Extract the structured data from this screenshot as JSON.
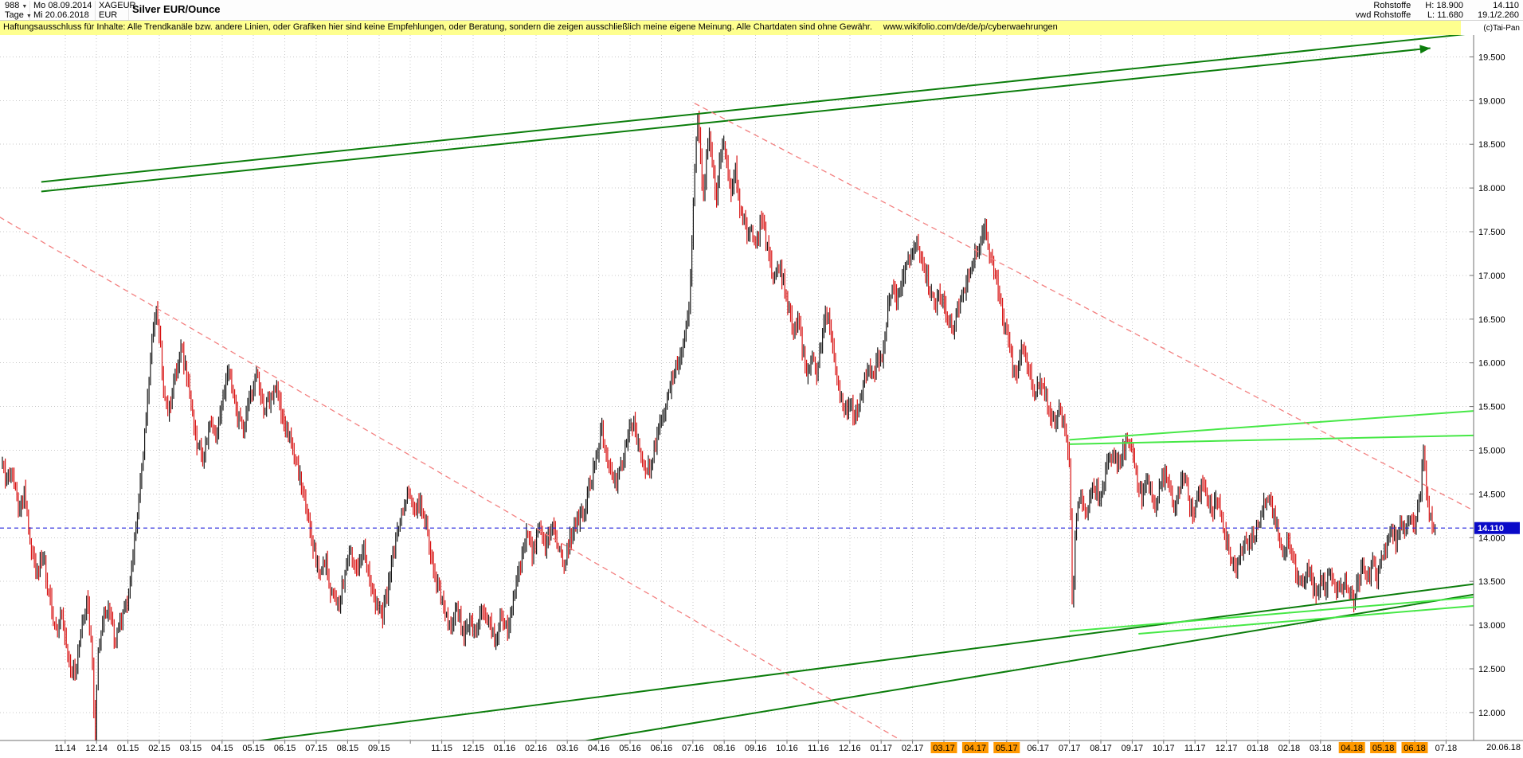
{
  "header": {
    "bars_count": "988",
    "dropdown_caret": "▼",
    "start_date": "Mo 08.09.2014",
    "symbol": "XAGEUR",
    "timeframe": "Tage",
    "end_date": "Mi 20.06.2018",
    "currency": "EUR",
    "title": "Silver EUR/Ounce",
    "category": "Rohstoffe",
    "feed": "vwd Rohstoffe",
    "high_label": "H: 18.900",
    "low_label": "L: 11.680",
    "last_price": "14.110",
    "secondary_value": "19.1/2.260"
  },
  "disclaimer": {
    "text": "Haftungsausschluss für Inhalte: Alle Trendkanäle bzw. andere Linien, oder Grafiken hier sind keine Empfehlungen, oder Beratung, sondern die zeigen ausschließlich meine eigene Meinung. Alle Chartdaten sind ohne Gewähr.",
    "link": "www.wikifolio.com/de/de/p/cyberwaehrungen"
  },
  "watermark": "(c)Tai-Pan",
  "corner_date": "20.06.18",
  "colors": {
    "bar_up": "#181818",
    "bar_down": "#d81414",
    "grid": "#c8c8c8",
    "dark_green": "#0b7d0b",
    "bright_green": "#46e846",
    "red_dashed": "#f38080",
    "blue": "#2424dc",
    "blue_tag_bg": "#0a0ac8",
    "orange": "#ff9900",
    "axis": "#707070"
  },
  "chart_data": {
    "type": "bar",
    "title": "Silver EUR/Ounce",
    "symbol": "XAGEUR",
    "xlabel": "",
    "ylabel": "",
    "start_date": "08.09.2014",
    "end_date": "20.06.2018",
    "bar_count": 988,
    "high": 18.9,
    "low": 11.68,
    "last": 14.11,
    "ylim": [
      11.68,
      19.75
    ],
    "x_range": [
      0,
      45.65
    ],
    "grid": "dotted",
    "legend": false,
    "y_ticks": [
      19.5,
      19.0,
      18.5,
      18.0,
      17.5,
      17.0,
      16.5,
      16.0,
      15.5,
      15.0,
      14.5,
      14.0,
      13.5,
      13.0,
      12.5,
      12.0
    ],
    "x_tick_labels": [
      {
        "m": 2,
        "t": "11.14"
      },
      {
        "m": 3,
        "t": "12.14"
      },
      {
        "m": 4,
        "t": "01.15"
      },
      {
        "m": 5,
        "t": "02.15"
      },
      {
        "m": 6,
        "t": "03.15"
      },
      {
        "m": 7,
        "t": "04.15"
      },
      {
        "m": 8,
        "t": "05.15"
      },
      {
        "m": 9,
        "t": "06.15"
      },
      {
        "m": 10,
        "t": "07.15"
      },
      {
        "m": 11,
        "t": "08.15"
      },
      {
        "m": 12,
        "t": "09.15"
      },
      {
        "m": 14,
        "t": "11.15"
      },
      {
        "m": 15,
        "t": "12.15"
      },
      {
        "m": 16,
        "t": "01.16"
      },
      {
        "m": 17,
        "t": "02.16"
      },
      {
        "m": 18,
        "t": "03.16"
      },
      {
        "m": 19,
        "t": "04.16"
      },
      {
        "m": 20,
        "t": "05.16"
      },
      {
        "m": 21,
        "t": "06.16"
      },
      {
        "m": 22,
        "t": "07.16"
      },
      {
        "m": 23,
        "t": "08.16"
      },
      {
        "m": 24,
        "t": "09.16"
      },
      {
        "m": 25,
        "t": "10.16"
      },
      {
        "m": 26,
        "t": "11.16"
      },
      {
        "m": 27,
        "t": "12.16"
      },
      {
        "m": 28,
        "t": "01.17"
      },
      {
        "m": 29,
        "t": "02.17"
      },
      {
        "m": 30,
        "t": "03.17",
        "hl": true
      },
      {
        "m": 31,
        "t": "04.17",
        "hl": true
      },
      {
        "m": 32,
        "t": "05.17",
        "hl": true
      },
      {
        "m": 33,
        "t": "06.17"
      },
      {
        "m": 34,
        "t": "07.17"
      },
      {
        "m": 35,
        "t": "08.17"
      },
      {
        "m": 36,
        "t": "09.17"
      },
      {
        "m": 37,
        "t": "10.17"
      },
      {
        "m": 38,
        "t": "11.17"
      },
      {
        "m": 39,
        "t": "12.17"
      },
      {
        "m": 40,
        "t": "01.18"
      },
      {
        "m": 41,
        "t": "02.18"
      },
      {
        "m": 42,
        "t": "03.18"
      },
      {
        "m": 43,
        "t": "04.18",
        "hl": true
      },
      {
        "m": 44,
        "t": "05.18",
        "hl": true
      },
      {
        "m": 45,
        "t": "06.18",
        "hl": true
      },
      {
        "m": 46,
        "t": "07.18"
      }
    ],
    "current_price_line": {
      "price": 14.11,
      "label": "14.110"
    },
    "trendlines": [
      {
        "id": "upper-trend-main",
        "from": [
          1.24,
          18.07
        ],
        "to": [
          46.9,
          19.77
        ],
        "style": "dark_green",
        "width": 2
      },
      {
        "id": "upper-trend-arrow",
        "from": [
          1.24,
          17.96
        ],
        "to": [
          45.5,
          19.6
        ],
        "style": "dark_green",
        "width": 2,
        "arrow": true
      },
      {
        "id": "lower-support-long",
        "from": [
          5.0,
          11.53
        ],
        "to": [
          46.9,
          13.47
        ],
        "style": "dark_green",
        "width": 2
      },
      {
        "id": "lower-support-steep",
        "from": [
          17.3,
          11.6
        ],
        "to": [
          46.9,
          13.35
        ],
        "style": "dark_green",
        "width": 2
      },
      {
        "id": "resistance-bright-upper",
        "from": [
          34.0,
          15.12
        ],
        "to": [
          46.9,
          15.45
        ],
        "style": "bright_green",
        "width": 2
      },
      {
        "id": "resistance-bright-lower",
        "from": [
          34.0,
          15.07
        ],
        "to": [
          46.9,
          15.17
        ],
        "style": "bright_green",
        "width": 2
      },
      {
        "id": "support-bright-upper",
        "from": [
          34.0,
          12.93
        ],
        "to": [
          46.9,
          13.32
        ],
        "style": "bright_green",
        "width": 2
      },
      {
        "id": "support-bright-lower",
        "from": [
          36.2,
          12.9
        ],
        "to": [
          46.9,
          13.22
        ],
        "style": "bright_green",
        "width": 2
      },
      {
        "id": "downtrend-dashed-2015",
        "from": [
          -0.1,
          17.67
        ],
        "to": [
          29.6,
          11.48
        ],
        "style": "red_dashed",
        "width": 1.3,
        "dash": true
      },
      {
        "id": "downtrend-dashed-2016",
        "from": [
          22.05,
          18.97
        ],
        "to": [
          47.2,
          14.25
        ],
        "style": "red_dashed",
        "width": 1.3,
        "dash": true
      }
    ],
    "price_path": [
      [
        0.0,
        14.9
      ],
      [
        0.15,
        14.62
      ],
      [
        0.3,
        14.8
      ],
      [
        0.5,
        14.35
      ],
      [
        0.7,
        14.5
      ],
      [
        0.9,
        13.95
      ],
      [
        1.1,
        13.6
      ],
      [
        1.3,
        13.82
      ],
      [
        1.5,
        13.3
      ],
      [
        1.7,
        12.92
      ],
      [
        1.9,
        13.15
      ],
      [
        2.1,
        12.6
      ],
      [
        2.3,
        12.42
      ],
      [
        2.5,
        12.88
      ],
      [
        2.7,
        13.3
      ],
      [
        2.85,
        12.65
      ],
      [
        2.95,
        11.68
      ],
      [
        3.05,
        12.7
      ],
      [
        3.2,
        13.05
      ],
      [
        3.4,
        13.25
      ],
      [
        3.6,
        12.8
      ],
      [
        3.8,
        13.05
      ],
      [
        4.0,
        13.35
      ],
      [
        4.2,
        13.95
      ],
      [
        4.4,
        14.6
      ],
      [
        4.6,
        15.45
      ],
      [
        4.75,
        16.25
      ],
      [
        4.87,
        16.6
      ],
      [
        5.0,
        16.35
      ],
      [
        5.15,
        15.65
      ],
      [
        5.3,
        15.4
      ],
      [
        5.5,
        15.85
      ],
      [
        5.7,
        16.15
      ],
      [
        5.85,
        15.9
      ],
      [
        6.0,
        15.55
      ],
      [
        6.2,
        15.1
      ],
      [
        6.4,
        14.9
      ],
      [
        6.6,
        15.3
      ],
      [
        6.8,
        15.15
      ],
      [
        7.0,
        15.5
      ],
      [
        7.2,
        15.95
      ],
      [
        7.35,
        15.7
      ],
      [
        7.5,
        15.4
      ],
      [
        7.7,
        15.25
      ],
      [
        7.9,
        15.6
      ],
      [
        8.1,
        15.9
      ],
      [
        8.3,
        15.5
      ],
      [
        8.5,
        15.55
      ],
      [
        8.7,
        15.75
      ],
      [
        8.9,
        15.4
      ],
      [
        9.1,
        15.25
      ],
      [
        9.3,
        14.95
      ],
      [
        9.5,
        14.65
      ],
      [
        9.7,
        14.25
      ],
      [
        9.9,
        13.9
      ],
      [
        10.1,
        13.6
      ],
      [
        10.3,
        13.7
      ],
      [
        10.5,
        13.35
      ],
      [
        10.7,
        13.2
      ],
      [
        10.9,
        13.55
      ],
      [
        11.1,
        13.85
      ],
      [
        11.3,
        13.6
      ],
      [
        11.5,
        13.9
      ],
      [
        11.7,
        13.5
      ],
      [
        11.9,
        13.25
      ],
      [
        12.1,
        13.1
      ],
      [
        12.3,
        13.45
      ],
      [
        12.5,
        13.9
      ],
      [
        12.7,
        14.25
      ],
      [
        12.9,
        14.5
      ],
      [
        13.1,
        14.3
      ],
      [
        13.3,
        14.45
      ],
      [
        13.5,
        14.15
      ],
      [
        13.7,
        13.7
      ],
      [
        13.9,
        13.4
      ],
      [
        14.1,
        13.15
      ],
      [
        14.3,
        12.98
      ],
      [
        14.5,
        13.2
      ],
      [
        14.7,
        12.85
      ],
      [
        14.9,
        13.05
      ],
      [
        15.1,
        12.92
      ],
      [
        15.3,
        13.18
      ],
      [
        15.5,
        13.05
      ],
      [
        15.7,
        12.85
      ],
      [
        15.9,
        13.1
      ],
      [
        16.1,
        12.95
      ],
      [
        16.3,
        13.3
      ],
      [
        16.5,
        13.7
      ],
      [
        16.7,
        14.05
      ],
      [
        16.9,
        13.8
      ],
      [
        17.1,
        14.1
      ],
      [
        17.3,
        13.9
      ],
      [
        17.5,
        14.15
      ],
      [
        17.7,
        13.92
      ],
      [
        17.9,
        13.72
      ],
      [
        18.1,
        13.98
      ],
      [
        18.3,
        14.18
      ],
      [
        18.5,
        14.22
      ],
      [
        18.7,
        14.55
      ],
      [
        18.9,
        14.9
      ],
      [
        19.1,
        15.25
      ],
      [
        19.3,
        14.88
      ],
      [
        19.5,
        14.58
      ],
      [
        19.7,
        14.82
      ],
      [
        19.9,
        15.1
      ],
      [
        20.1,
        15.35
      ],
      [
        20.3,
        15.02
      ],
      [
        20.5,
        14.68
      ],
      [
        20.7,
        14.92
      ],
      [
        20.9,
        15.18
      ],
      [
        21.1,
        15.45
      ],
      [
        21.3,
        15.72
      ],
      [
        21.5,
        15.98
      ],
      [
        21.7,
        16.22
      ],
      [
        21.85,
        16.5
      ],
      [
        21.95,
        17.2
      ],
      [
        22.05,
        18.1
      ],
      [
        22.15,
        18.88
      ],
      [
        22.25,
        18.35
      ],
      [
        22.35,
        17.85
      ],
      [
        22.45,
        18.45
      ],
      [
        22.55,
        18.6
      ],
      [
        22.65,
        18.2
      ],
      [
        22.75,
        17.78
      ],
      [
        22.85,
        18.28
      ],
      [
        22.95,
        18.5
      ],
      [
        23.05,
        18.42
      ],
      [
        23.15,
        18.1
      ],
      [
        23.25,
        17.92
      ],
      [
        23.35,
        18.2
      ],
      [
        23.45,
        17.95
      ],
      [
        23.55,
        17.62
      ],
      [
        23.65,
        17.78
      ],
      [
        23.75,
        17.42
      ],
      [
        23.85,
        17.58
      ],
      [
        24.0,
        17.32
      ],
      [
        24.15,
        17.62
      ],
      [
        24.3,
        17.48
      ],
      [
        24.45,
        17.18
      ],
      [
        24.6,
        16.92
      ],
      [
        24.75,
        17.12
      ],
      [
        24.9,
        16.88
      ],
      [
        25.05,
        16.6
      ],
      [
        25.2,
        16.32
      ],
      [
        25.35,
        16.52
      ],
      [
        25.5,
        16.1
      ],
      [
        25.65,
        15.88
      ],
      [
        25.8,
        16.05
      ],
      [
        25.95,
        15.92
      ],
      [
        26.1,
        16.3
      ],
      [
        26.25,
        16.65
      ],
      [
        26.4,
        16.35
      ],
      [
        26.55,
        15.95
      ],
      [
        26.7,
        15.62
      ],
      [
        26.85,
        15.42
      ],
      [
        27.0,
        15.58
      ],
      [
        27.15,
        15.36
      ],
      [
        27.3,
        15.55
      ],
      [
        27.45,
        15.8
      ],
      [
        27.6,
        16.0
      ],
      [
        27.75,
        15.86
      ],
      [
        27.9,
        16.06
      ],
      [
        28.05,
        16.1
      ],
      [
        28.2,
        16.6
      ],
      [
        28.35,
        16.85
      ],
      [
        28.5,
        16.7
      ],
      [
        28.65,
        16.92
      ],
      [
        28.8,
        17.1
      ],
      [
        28.95,
        17.28
      ],
      [
        29.1,
        17.4
      ],
      [
        29.3,
        17.15
      ],
      [
        29.5,
        16.92
      ],
      [
        29.7,
        16.62
      ],
      [
        29.9,
        16.78
      ],
      [
        30.1,
        16.52
      ],
      [
        30.3,
        16.42
      ],
      [
        30.5,
        16.7
      ],
      [
        30.7,
        16.92
      ],
      [
        30.9,
        17.15
      ],
      [
        31.1,
        17.32
      ],
      [
        31.3,
        17.5
      ],
      [
        31.5,
        17.22
      ],
      [
        31.7,
        16.85
      ],
      [
        31.9,
        16.45
      ],
      [
        32.1,
        16.12
      ],
      [
        32.3,
        15.88
      ],
      [
        32.5,
        16.15
      ],
      [
        32.7,
        15.92
      ],
      [
        32.9,
        15.62
      ],
      [
        33.1,
        15.8
      ],
      [
        33.3,
        15.55
      ],
      [
        33.5,
        15.32
      ],
      [
        33.7,
        15.45
      ],
      [
        33.9,
        15.12
      ],
      [
        34.02,
        14.82
      ],
      [
        34.1,
        13.0
      ],
      [
        34.2,
        14.2
      ],
      [
        34.35,
        14.48
      ],
      [
        34.5,
        14.26
      ],
      [
        34.65,
        14.46
      ],
      [
        34.8,
        14.62
      ],
      [
        34.95,
        14.42
      ],
      [
        35.1,
        14.66
      ],
      [
        35.25,
        14.9
      ],
      [
        35.4,
        15.0
      ],
      [
        35.55,
        14.82
      ],
      [
        35.7,
        15.0
      ],
      [
        35.85,
        15.08
      ],
      [
        36.0,
        14.92
      ],
      [
        36.15,
        14.66
      ],
      [
        36.3,
        14.46
      ],
      [
        36.45,
        14.7
      ],
      [
        36.6,
        14.52
      ],
      [
        36.75,
        14.36
      ],
      [
        36.9,
        14.6
      ],
      [
        37.05,
        14.76
      ],
      [
        37.2,
        14.52
      ],
      [
        37.35,
        14.32
      ],
      [
        37.5,
        14.56
      ],
      [
        37.65,
        14.7
      ],
      [
        37.8,
        14.46
      ],
      [
        37.95,
        14.26
      ],
      [
        38.1,
        14.5
      ],
      [
        38.25,
        14.64
      ],
      [
        38.4,
        14.4
      ],
      [
        38.55,
        14.3
      ],
      [
        38.7,
        14.45
      ],
      [
        38.85,
        14.2
      ],
      [
        39.0,
        14.0
      ],
      [
        39.15,
        13.75
      ],
      [
        39.3,
        13.56
      ],
      [
        39.45,
        13.8
      ],
      [
        39.6,
        14.0
      ],
      [
        39.75,
        13.88
      ],
      [
        39.9,
        14.05
      ],
      [
        40.05,
        14.2
      ],
      [
        40.2,
        14.38
      ],
      [
        40.35,
        14.5
      ],
      [
        40.5,
        14.28
      ],
      [
        40.65,
        14.05
      ],
      [
        40.8,
        13.85
      ],
      [
        40.95,
        14.0
      ],
      [
        41.1,
        13.8
      ],
      [
        41.25,
        13.6
      ],
      [
        41.4,
        13.45
      ],
      [
        41.55,
        13.65
      ],
      [
        41.7,
        13.5
      ],
      [
        41.85,
        13.38
      ],
      [
        42.0,
        13.55
      ],
      [
        42.15,
        13.42
      ],
      [
        42.3,
        13.6
      ],
      [
        42.45,
        13.46
      ],
      [
        42.6,
        13.35
      ],
      [
        42.75,
        13.52
      ],
      [
        42.9,
        13.4
      ],
      [
        43.05,
        13.3
      ],
      [
        43.2,
        13.48
      ],
      [
        43.35,
        13.66
      ],
      [
        43.5,
        13.5
      ],
      [
        43.65,
        13.72
      ],
      [
        43.8,
        13.58
      ],
      [
        43.95,
        13.8
      ],
      [
        44.1,
        13.95
      ],
      [
        44.25,
        14.12
      ],
      [
        44.4,
        13.98
      ],
      [
        44.55,
        14.18
      ],
      [
        44.7,
        14.05
      ],
      [
        44.85,
        14.25
      ],
      [
        45.0,
        14.12
      ],
      [
        45.15,
        14.4
      ],
      [
        45.28,
        14.95
      ],
      [
        45.38,
        14.52
      ],
      [
        45.48,
        14.28
      ],
      [
        45.58,
        14.16
      ],
      [
        45.65,
        14.11
      ]
    ]
  }
}
